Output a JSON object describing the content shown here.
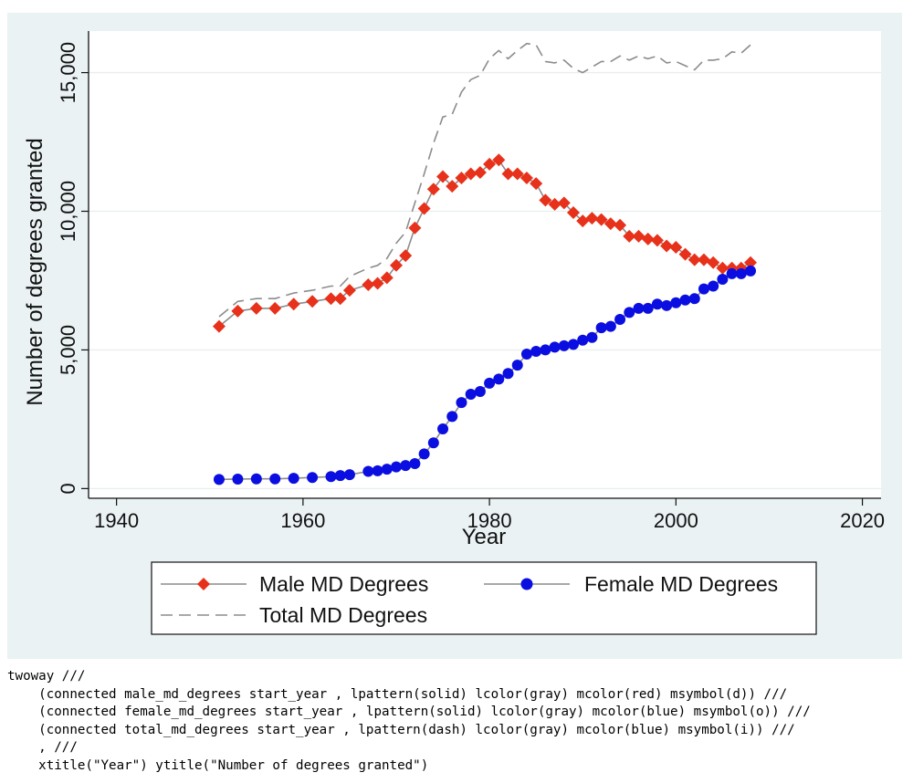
{
  "chart_data": {
    "type": "line",
    "xlabel": "Year",
    "ylabel": "Number of degrees granted",
    "xlim": [
      1937,
      2022
    ],
    "ylim": [
      -350,
      16500
    ],
    "xticks": [
      1940,
      1960,
      1980,
      2000,
      2020
    ],
    "xtick_labels": [
      "1940",
      "1960",
      "1980",
      "2000",
      "2020"
    ],
    "yticks": [
      0,
      5000,
      10000,
      15000
    ],
    "ytick_labels": [
      "0",
      "5,000",
      "10,000",
      "15,000"
    ],
    "grid": "horizontal",
    "legend_position": "bottom",
    "x": [
      1951,
      1953,
      1955,
      1957,
      1959,
      1961,
      1963,
      1964,
      1965,
      1967,
      1968,
      1969,
      1970,
      1971,
      1972,
      1973,
      1974,
      1975,
      1976,
      1977,
      1978,
      1979,
      1980,
      1981,
      1982,
      1983,
      1984,
      1985,
      1986,
      1987,
      1988,
      1989,
      1990,
      1991,
      1992,
      1993,
      1994,
      1995,
      1996,
      1997,
      1998,
      1999,
      2000,
      2001,
      2002,
      2003,
      2004,
      2005,
      2006,
      2007,
      2008
    ],
    "series": [
      {
        "name": "Male MD Degrees",
        "marker": "diamond",
        "marker_color": "#e8311a",
        "line_color": "#8c8c8c",
        "line_style": "solid",
        "values": [
          5850,
          6400,
          6500,
          6500,
          6650,
          6750,
          6850,
          6850,
          7150,
          7350,
          7400,
          7600,
          8050,
          8400,
          9400,
          10100,
          10800,
          11250,
          10900,
          11200,
          11350,
          11400,
          11700,
          11850,
          11350,
          11350,
          11200,
          11000,
          10400,
          10250,
          10300,
          9950,
          9650,
          9750,
          9700,
          9550,
          9500,
          9100,
          9100,
          9000,
          8950,
          8750,
          8700,
          8450,
          8250,
          8250,
          8150,
          7950,
          7950,
          7950,
          8150
        ]
      },
      {
        "name": "Female MD Degrees",
        "marker": "circle",
        "marker_color": "#0a0ee0",
        "line_color": "#8c8c8c",
        "line_style": "solid",
        "values": [
          330,
          340,
          350,
          350,
          370,
          400,
          430,
          470,
          500,
          620,
          640,
          700,
          780,
          830,
          900,
          1250,
          1650,
          2150,
          2600,
          3100,
          3400,
          3500,
          3800,
          3950,
          4150,
          4450,
          4850,
          4950,
          5000,
          5100,
          5150,
          5200,
          5350,
          5450,
          5800,
          5850,
          6100,
          6350,
          6500,
          6500,
          6650,
          6600,
          6700,
          6800,
          6850,
          7200,
          7300,
          7550,
          7750,
          7750,
          7850
        ]
      },
      {
        "name": "Total MD Degrees",
        "marker": "none",
        "marker_color": "#0a0ee0",
        "line_color": "#8c8c8c",
        "line_style": "dash",
        "values": [
          6200,
          6750,
          6850,
          6850,
          7050,
          7150,
          7300,
          7300,
          7650,
          7950,
          8050,
          8300,
          8850,
          9250,
          10300,
          11350,
          12450,
          13400,
          13500,
          14300,
          14750,
          14900,
          15500,
          15800,
          15500,
          15800,
          16050,
          16000,
          15400,
          15350,
          15450,
          15150,
          15000,
          15200,
          15400,
          15400,
          15600,
          15450,
          15600,
          15500,
          15600,
          15350,
          15400,
          15250,
          15100,
          15450,
          15450,
          15500,
          15750,
          15700,
          16000
        ]
      }
    ]
  },
  "code": {
    "lines": [
      "twoway ///",
      "    (connected male_md_degrees start_year , lpattern(solid) lcolor(gray) mcolor(red) msymbol(d)) ///",
      "    (connected female_md_degrees start_year , lpattern(solid) lcolor(gray) mcolor(blue) msymbol(o)) ///",
      "    (connected total_md_degrees start_year , lpattern(dash) lcolor(gray) mcolor(blue) msymbol(i)) ///",
      "    , ///",
      "    xtitle(\"Year\") ytitle(\"Number of degrees granted\")"
    ]
  }
}
